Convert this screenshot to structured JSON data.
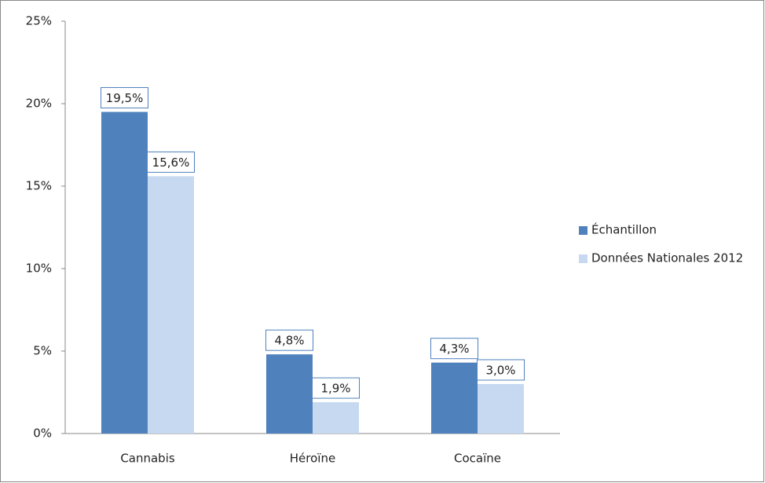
{
  "chart_data": {
    "type": "bar",
    "categories": [
      "Cannabis",
      "Héroïne",
      "Cocaïne"
    ],
    "series": [
      {
        "name": "Échantillon",
        "color": "#4f81bd",
        "values": [
          19.5,
          4.8,
          4.3
        ],
        "value_labels": [
          "19,5%",
          "4,8%",
          "4,3%"
        ]
      },
      {
        "name": "Données Nationales 2012",
        "color": "#c6d9f1",
        "values": [
          15.6,
          1.9,
          3.0
        ],
        "value_labels": [
          "15,6%",
          "1,9%",
          "3,0%"
        ]
      }
    ],
    "ylim": [
      0,
      25
    ],
    "yticks": [
      {
        "value": 0,
        "label": "0%"
      },
      {
        "value": 5,
        "label": "5%"
      },
      {
        "value": 10,
        "label": "10%"
      },
      {
        "value": 15,
        "label": "15%"
      },
      {
        "value": 20,
        "label": "20%"
      },
      {
        "value": 25,
        "label": "25%"
      }
    ],
    "grid": false,
    "legend": "right"
  }
}
